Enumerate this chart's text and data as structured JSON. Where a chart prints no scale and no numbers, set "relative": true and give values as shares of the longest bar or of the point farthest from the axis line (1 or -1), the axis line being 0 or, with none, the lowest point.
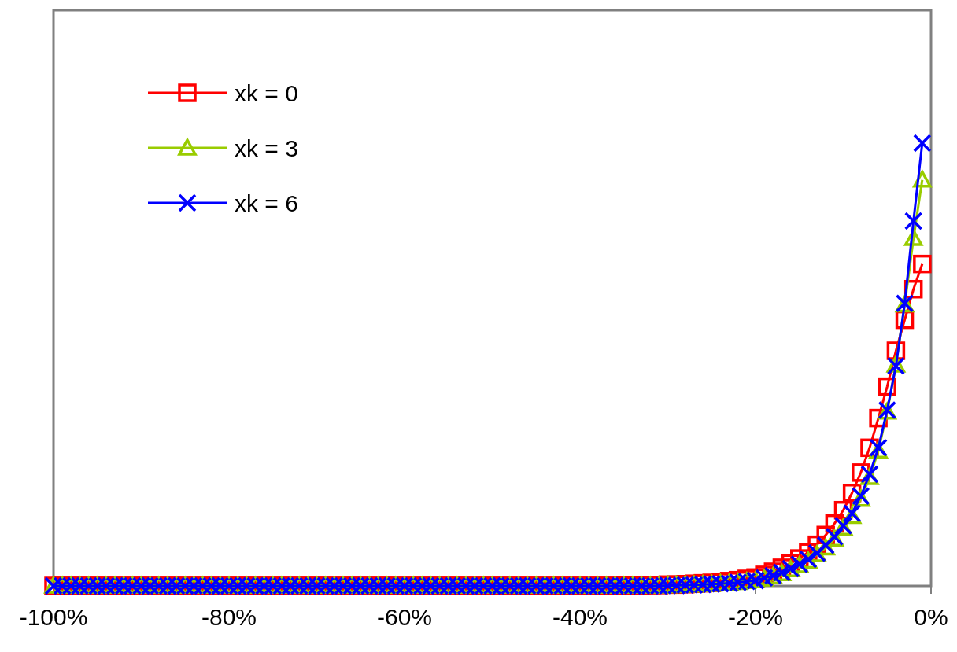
{
  "chart_data": {
    "type": "line",
    "relative": true,
    "x": [
      -100,
      -99,
      -98,
      -97,
      -96,
      -95,
      -94,
      -93,
      -92,
      -91,
      -90,
      -89,
      -88,
      -87,
      -86,
      -85,
      -84,
      -83,
      -82,
      -81,
      -80,
      -79,
      -78,
      -77,
      -76,
      -75,
      -74,
      -73,
      -72,
      -71,
      -70,
      -69,
      -68,
      -67,
      -66,
      -65,
      -64,
      -63,
      -62,
      -61,
      -60,
      -59,
      -58,
      -57,
      -56,
      -55,
      -54,
      -53,
      -52,
      -51,
      -50,
      -49,
      -48,
      -47,
      -46,
      -45,
      -44,
      -43,
      -42,
      -41,
      -40,
      -39,
      -38,
      -37,
      -36,
      -35,
      -34,
      -33,
      -32,
      -31,
      -30,
      -29,
      -28,
      -27,
      -26,
      -25,
      -24,
      -23,
      -22,
      -21,
      -20,
      -19,
      -18,
      -17,
      -16,
      -15,
      -14,
      -13,
      -12,
      -11,
      -10,
      -9,
      -8,
      -7,
      -6,
      -5,
      -4,
      -3,
      -2,
      -1
    ],
    "xlim": [
      -100,
      0
    ],
    "xticks": [
      {
        "value": -100,
        "label": "-100%"
      },
      {
        "value": -80,
        "label": "-80%"
      },
      {
        "value": -60,
        "label": "-60%"
      },
      {
        "value": -40,
        "label": "-40%"
      },
      {
        "value": -20,
        "label": "-20%"
      },
      {
        "value": 0,
        "label": "0%"
      }
    ],
    "legend": "top left",
    "grid": false,
    "line_style": "solid",
    "series": [
      {
        "name": "xk = 0",
        "color": "#ff0000",
        "marker": "square",
        "values": [
          0,
          0,
          0,
          0,
          0,
          0,
          0,
          0,
          0,
          0,
          0,
          0,
          0,
          0,
          0,
          0,
          0,
          0,
          0,
          0,
          0,
          0,
          0,
          0,
          0,
          0,
          0,
          0,
          0,
          0,
          0,
          0,
          0,
          0,
          0,
          0,
          0,
          0,
          0,
          0,
          0,
          0,
          0,
          0,
          0,
          0,
          0,
          0,
          0,
          0,
          0,
          0,
          0,
          0,
          0,
          0,
          0,
          0,
          0,
          0,
          0,
          0,
          0,
          0,
          0,
          0.001,
          0.001,
          0.001,
          0.002,
          0.002,
          0.003,
          0.003,
          0.004,
          0.005,
          0.006,
          0.007,
          0.009,
          0.011,
          0.013,
          0.016,
          0.019,
          0.025,
          0.032,
          0.041,
          0.051,
          0.062,
          0.076,
          0.093,
          0.115,
          0.141,
          0.171,
          0.21,
          0.256,
          0.312,
          0.379,
          0.45,
          0.531,
          0.601,
          0.67,
          0.727
        ]
      },
      {
        "name": "xk = 3",
        "color": "#99cc00",
        "marker": "triangle",
        "values": [
          0,
          0,
          0,
          0,
          0,
          0,
          0,
          0,
          0,
          0,
          0,
          0,
          0,
          0,
          0,
          0,
          0,
          0,
          0,
          0,
          0,
          0,
          0,
          0,
          0,
          0,
          0,
          0,
          0,
          0,
          0,
          0,
          0,
          0,
          0,
          0,
          0,
          0,
          0,
          0,
          0,
          0,
          0,
          0,
          0,
          0,
          0,
          0,
          0,
          0,
          0,
          0,
          0,
          0,
          0,
          0,
          0,
          0,
          0,
          0,
          0,
          0,
          0,
          0,
          0,
          0,
          0,
          0,
          0,
          0,
          0.001,
          0.001,
          0.002,
          0.002,
          0.003,
          0.004,
          0.005,
          0.006,
          0.008,
          0.01,
          0.012,
          0.016,
          0.021,
          0.028,
          0.037,
          0.046,
          0.056,
          0.071,
          0.086,
          0.106,
          0.131,
          0.157,
          0.196,
          0.245,
          0.305,
          0.393,
          0.499,
          0.635,
          0.785,
          0.917
        ]
      },
      {
        "name": "xk = 6",
        "color": "#0000ff",
        "marker": "cross",
        "values": [
          0,
          0,
          0,
          0,
          0,
          0,
          0,
          0,
          0,
          0,
          0,
          0,
          0,
          0,
          0,
          0,
          0,
          0,
          0,
          0,
          0,
          0,
          0,
          0,
          0,
          0,
          0,
          0,
          0,
          0,
          0,
          0,
          0,
          0,
          0,
          0,
          0,
          0,
          0,
          0,
          0,
          0,
          0,
          0,
          0,
          0,
          0,
          0,
          0,
          0,
          0,
          0,
          0,
          0,
          0,
          0,
          0,
          0,
          0,
          0,
          0,
          0,
          0,
          0,
          0,
          0,
          0,
          0,
          0,
          0,
          0.001,
          0.001,
          0.002,
          0.002,
          0.003,
          0.004,
          0.005,
          0.006,
          0.008,
          0.01,
          0.012,
          0.018,
          0.023,
          0.03,
          0.039,
          0.049,
          0.06,
          0.074,
          0.092,
          0.111,
          0.136,
          0.164,
          0.203,
          0.252,
          0.312,
          0.397,
          0.497,
          0.638,
          0.824,
          1
        ]
      }
    ]
  }
}
